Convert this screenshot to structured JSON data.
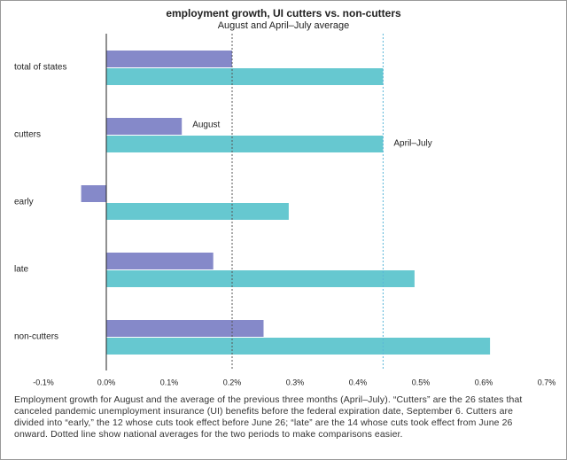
{
  "chart_data": {
    "type": "hbar",
    "title": "employment growth, UI cutters vs. non-cutters",
    "subtitle": "August and April–July average",
    "categories": [
      "total of states",
      "cutters",
      "early",
      "late",
      "non-cutters"
    ],
    "series": [
      {
        "name": "August",
        "color": "#8589c9",
        "values": [
          0.2,
          0.12,
          -0.04,
          0.17,
          0.25
        ]
      },
      {
        "name": "April–July",
        "color": "#66c8d0",
        "values": [
          0.44,
          0.44,
          0.29,
          0.49,
          0.61
        ]
      }
    ],
    "xlim": [
      -0.1,
      0.7
    ],
    "xticks": [
      {
        "value": -0.1,
        "label": "-0.1%"
      },
      {
        "value": 0,
        "label": "0.0%"
      },
      {
        "value": 0.1,
        "label": "0.1%"
      },
      {
        "value": 0.2,
        "label": "0.2%"
      },
      {
        "value": 0.3,
        "label": "0.3%"
      },
      {
        "value": 0.4,
        "label": "0.4%"
      },
      {
        "value": 0.5,
        "label": "0.5%"
      },
      {
        "value": 0.6,
        "label": "0.6%"
      },
      {
        "value": 0.7,
        "label": "0.7%"
      }
    ],
    "note": "Employment growth for August and the average of the previous three months (April–July). “Cutters” are the 26 states that canceled pandemic unemployment insurance (UI) benefits before the federal expiration date, September 6. Cutters are divided into “early,” the 12 whose cuts took effect before June 26; “late” are the 14 whose cuts took effect from June 26 onward. Dotted line show national averages for the two periods to make comparisons easier."
  }
}
